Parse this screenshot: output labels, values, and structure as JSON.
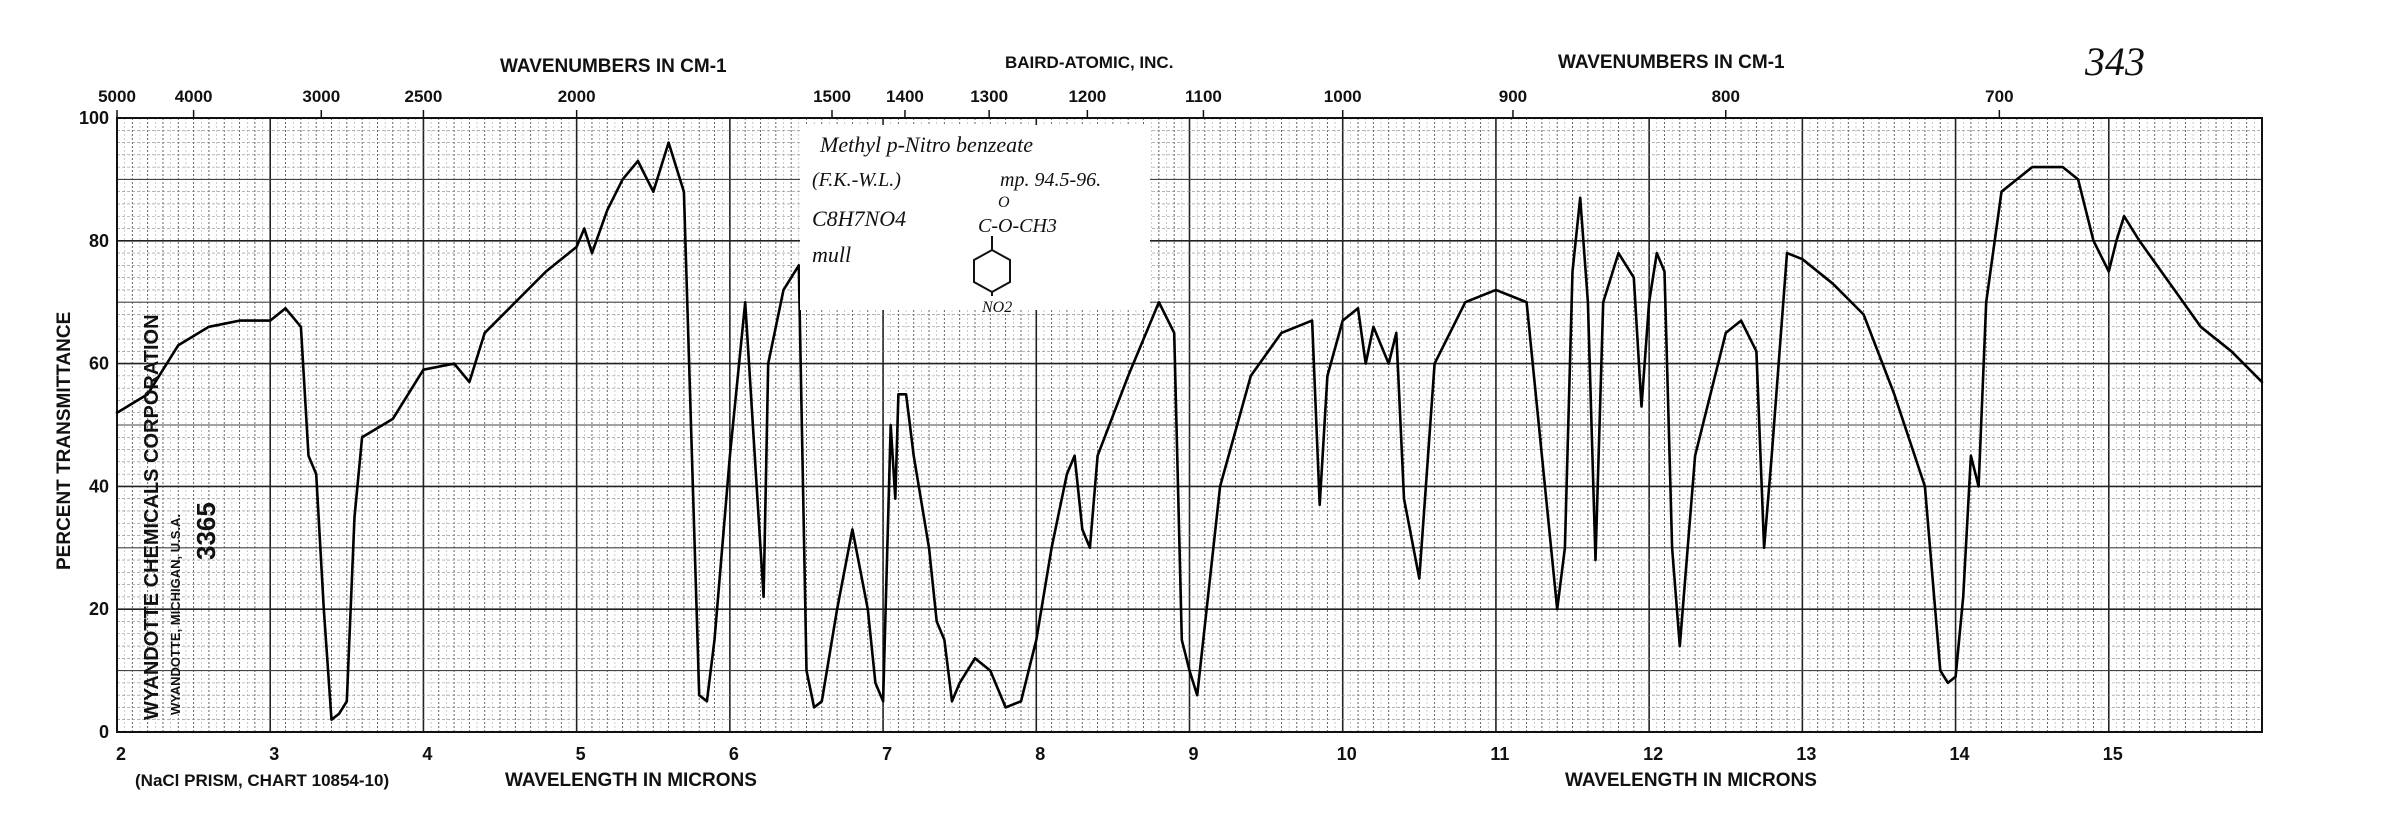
{
  "chart_data": {
    "type": "line",
    "title": "Methyl p-Nitro benzeate",
    "header_left": "WAVENUMBERS IN CM-1",
    "header_center": "BAIRD-ATOMIC, INC.",
    "header_right": "WAVENUMBERS IN CM-1",
    "page_number": "343",
    "xlabel_left": "WAVELENGTH IN MICRONS",
    "xlabel_right": "WAVELENGTH IN MICRONS",
    "ylabel": "PERCENT TRANSMITTANCE",
    "footnote": "(NaCl PRISM, CHART 10854-10)",
    "company": "WYANDOTTE CHEMICALS CORPORATION",
    "company_location": "WYANDOTTE, MICHIGAN, U.S.A.",
    "sample_number": "3365",
    "sample_notes": [
      "(F.K.-W.L.)",
      "mp. 94.5-96.",
      "C8H7NO4",
      "mull"
    ],
    "structure_labels": [
      "O",
      "C-O-CH3",
      "NO2"
    ],
    "xlim": [
      2,
      16
    ],
    "ylim": [
      0,
      100
    ],
    "x_ticks_bottom": [
      "2",
      "3",
      "4",
      "5",
      "6",
      "7",
      "8",
      "9",
      "10",
      "11",
      "12",
      "13",
      "14",
      "15"
    ],
    "y_ticks": [
      "0",
      "20",
      "40",
      "60",
      "80",
      "100"
    ],
    "top_wavenumber_ticks": [
      "5000",
      "4000",
      "3000",
      "2500",
      "2000",
      "1500",
      "1400",
      "1300",
      "1200",
      "1100",
      "1000",
      "900",
      "800",
      "700"
    ],
    "grid": true,
    "series": [
      {
        "x": [
          2.0,
          2.2,
          2.4,
          2.6,
          2.8,
          3.0,
          3.1,
          3.2,
          3.25,
          3.3,
          3.35,
          3.4,
          3.45,
          3.5,
          3.55,
          3.6,
          3.8,
          4.0,
          4.2,
          4.3,
          4.4,
          4.6,
          4.8,
          5.0,
          5.05,
          5.1,
          5.2,
          5.3,
          5.4,
          5.5,
          5.6,
          5.7,
          5.8,
          5.85,
          5.9,
          6.0,
          6.1,
          6.2,
          6.22,
          6.25,
          6.35,
          6.45,
          6.5,
          6.55,
          6.6,
          6.7,
          6.8,
          6.9,
          6.95,
          7.0,
          7.05,
          7.08,
          7.1,
          7.15,
          7.2,
          7.3,
          7.35,
          7.4,
          7.45,
          7.5,
          7.6,
          7.7,
          7.8,
          7.9,
          8.0,
          8.1,
          8.2,
          8.25,
          8.3,
          8.35,
          8.4,
          8.6,
          8.8,
          8.9,
          8.95,
          9.0,
          9.05,
          9.2,
          9.4,
          9.6,
          9.8,
          9.85,
          9.9,
          10.0,
          10.1,
          10.15,
          10.2,
          10.3,
          10.35,
          10.4,
          10.5,
          10.6,
          10.8,
          11.0,
          11.2,
          11.4,
          11.45,
          11.5,
          11.55,
          11.6,
          11.65,
          11.7,
          11.8,
          11.9,
          11.95,
          12.0,
          12.05,
          12.1,
          12.15,
          12.2,
          12.3,
          12.5,
          12.6,
          12.7,
          12.75,
          12.8,
          12.9,
          13.0,
          13.2,
          13.4,
          13.6,
          13.8,
          13.9,
          13.95,
          14.0,
          14.05,
          14.1,
          14.15,
          14.2,
          14.3,
          14.5,
          14.7,
          14.8,
          14.9,
          15.0,
          15.05,
          15.1,
          15.2,
          15.4,
          15.6,
          15.8,
          16.0
        ],
        "y": [
          52,
          55,
          63,
          66,
          67,
          67,
          69,
          66,
          45,
          42,
          20,
          2,
          3,
          5,
          35,
          48,
          51,
          59,
          60,
          57,
          65,
          70,
          75,
          79,
          82,
          78,
          85,
          90,
          93,
          88,
          96,
          88,
          6,
          5,
          15,
          45,
          70,
          30,
          22,
          60,
          72,
          76,
          10,
          4,
          5,
          20,
          33,
          20,
          8,
          5,
          50,
          38,
          55,
          55,
          45,
          30,
          18,
          15,
          5,
          8,
          12,
          10,
          4,
          5,
          15,
          30,
          42,
          45,
          33,
          30,
          45,
          58,
          70,
          65,
          15,
          10,
          6,
          40,
          58,
          65,
          67,
          37,
          58,
          67,
          69,
          60,
          66,
          60,
          65,
          38,
          25,
          60,
          70,
          72,
          70,
          20,
          30,
          75,
          87,
          70,
          28,
          70,
          78,
          74,
          53,
          70,
          78,
          75,
          30,
          14,
          45,
          65,
          67,
          62,
          30,
          45,
          78,
          77,
          73,
          68,
          55,
          40,
          10,
          8,
          9,
          22,
          45,
          40,
          70,
          88,
          92,
          92,
          90,
          80,
          75,
          80,
          84,
          80,
          73,
          66,
          62,
          57
        ]
      }
    ]
  }
}
